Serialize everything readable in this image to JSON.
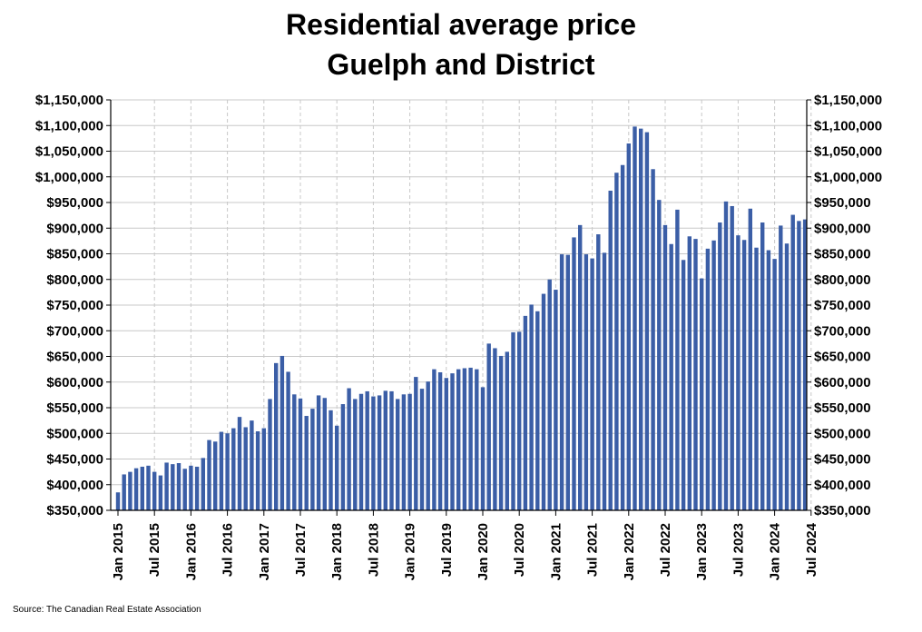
{
  "chart_data": {
    "type": "bar",
    "title": "Residential average price",
    "subtitle": "Guelph and District",
    "source": "Source: The Canadian Real Estate Association",
    "ylim": [
      350000,
      1150000
    ],
    "ytick_step": 50000,
    "ytick_labels": [
      "$350,000",
      "$400,000",
      "$450,000",
      "$500,000",
      "$550,000",
      "$600,000",
      "$650,000",
      "$700,000",
      "$750,000",
      "$800,000",
      "$850,000",
      "$900,000",
      "$950,000",
      "$1,000,000",
      "$1,050,000",
      "$1,100,000",
      "$1,150,000"
    ],
    "xtick_labels": [
      "Jan 2015",
      "Jul 2015",
      "Jan 2016",
      "Jul 2016",
      "Jan 2017",
      "Jul 2017",
      "Jan 2018",
      "Jul 2018",
      "Jan 2019",
      "Jul 2019",
      "Jan 2020",
      "Jul 2020",
      "Jan 2021",
      "Jul 2021",
      "Jan 2022",
      "Jul 2022",
      "Jan 2023",
      "Jul 2023",
      "Jan 2024",
      "Jul 2024"
    ],
    "series": [
      {
        "name": "Residential average price",
        "color": "#3B5EA6",
        "start": "Jan 2015",
        "values": [
          385000,
          420000,
          425000,
          432000,
          435000,
          437000,
          425000,
          418000,
          443000,
          440000,
          442000,
          431000,
          437000,
          435000,
          452000,
          487000,
          484000,
          503000,
          500000,
          510000,
          532000,
          512000,
          525000,
          504000,
          510000,
          567000,
          637000,
          651000,
          620000,
          576000,
          568000,
          534000,
          548000,
          574000,
          569000,
          545000,
          515000,
          557000,
          588000,
          567000,
          577000,
          582000,
          572000,
          574000,
          583000,
          582000,
          567000,
          576000,
          577000,
          610000,
          587000,
          601000,
          625000,
          619000,
          608000,
          617000,
          625000,
          627000,
          628000,
          625000,
          590000,
          675000,
          666000,
          651000,
          659000,
          697000,
          698000,
          729000,
          751000,
          738000,
          772000,
          800000,
          780000,
          849000,
          848000,
          882000,
          906000,
          849000,
          841000,
          888000,
          852000,
          973000,
          1008000,
          1023000,
          1065000,
          1098000,
          1094000,
          1087000,
          1015000,
          955000,
          906000,
          869000,
          936000,
          838000,
          884000,
          879000,
          802000,
          860000,
          876000,
          911000,
          952000,
          943000,
          886000,
          877000,
          938000,
          862000,
          911000,
          857000,
          840000,
          905000,
          870000,
          926000,
          914000,
          917000
        ]
      }
    ]
  }
}
